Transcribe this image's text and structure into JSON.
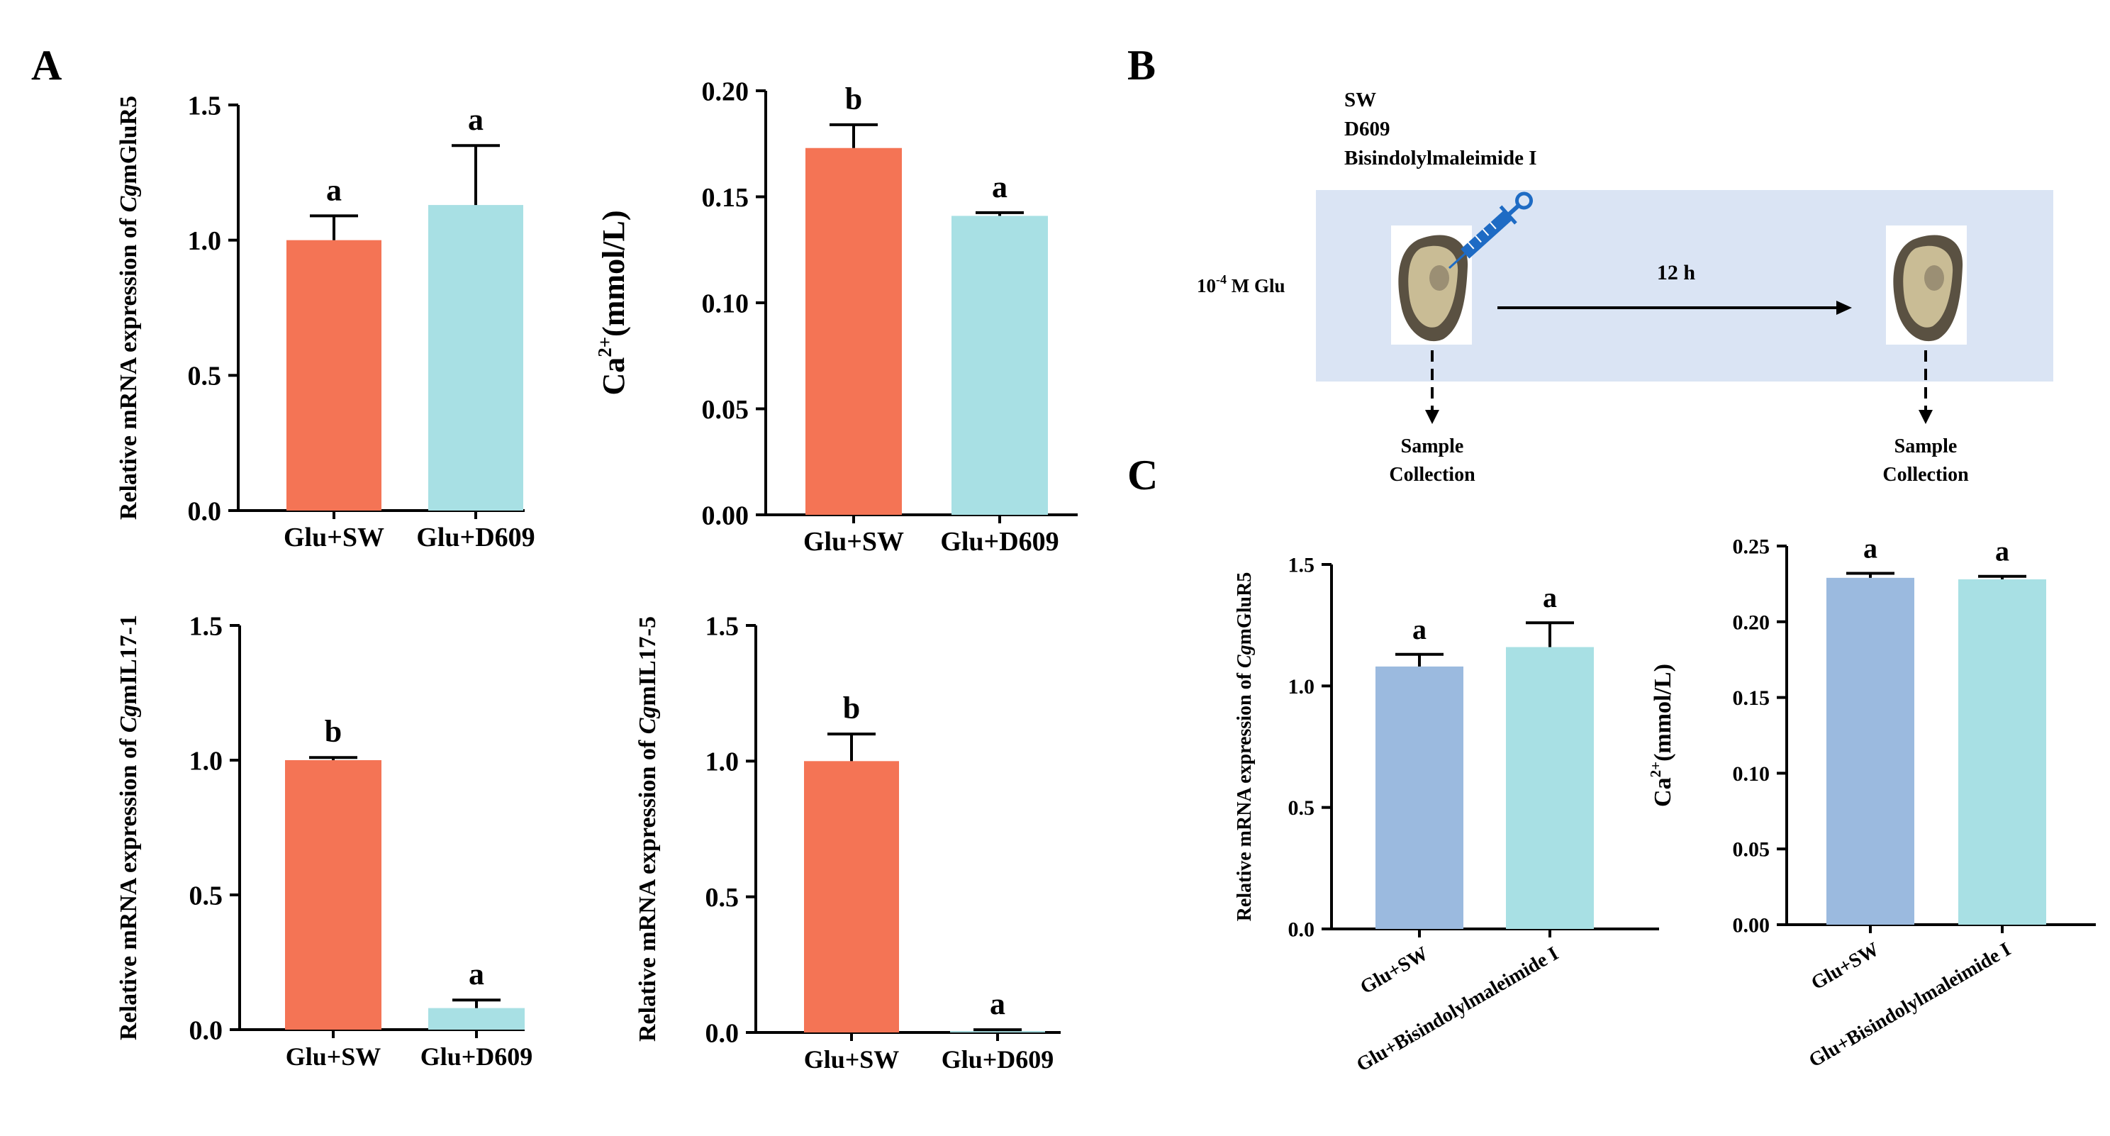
{
  "panel_labels": {
    "A": "A",
    "B": "B",
    "C": "C"
  },
  "colors": {
    "orange": "#F47455",
    "cyan": "#A8E0E4",
    "blue": "#9BBADF",
    "schematic_bg": "#DAE4F4",
    "syringe": "#1E6BC4"
  },
  "schematic": {
    "treatments": [
      "SW",
      "D609",
      "Bisindolylmaleimide I"
    ],
    "glu_prefix": "10",
    "glu_exponent": "-4",
    "glu_suffix": " M Glu",
    "time_label": "12 h",
    "sample_label_line1": "Sample",
    "sample_label_line2": "Collection"
  },
  "chart_data": [
    {
      "id": "A1",
      "type": "bar",
      "panel": "A",
      "categories": [
        "Glu+SW",
        "Glu+D609"
      ],
      "values": [
        1.0,
        1.13
      ],
      "errors": [
        0.09,
        0.22
      ],
      "letters": [
        "a",
        "a"
      ],
      "colors": [
        "#F47455",
        "#A8E0E4"
      ],
      "ylabel_pre": "Relative mRNA expression of ",
      "ylabel_ital": "Cg",
      "ylabel_post": "mGluR5",
      "ylim": [
        0,
        1.5
      ],
      "yticks": [
        "0.0",
        "0.5",
        "1.0",
        "1.5"
      ]
    },
    {
      "id": "A2",
      "type": "bar",
      "panel": "A",
      "categories": [
        "Glu+SW",
        "Glu+D609"
      ],
      "values": [
        0.173,
        0.141
      ],
      "errors": [
        0.011,
        0.0015
      ],
      "letters": [
        "b",
        "a"
      ],
      "colors": [
        "#F47455",
        "#A8E0E4"
      ],
      "ylabel_main": "Ca",
      "ylabel_sup": "2+",
      "ylabel_post": "(mmol/L)",
      "ylim": [
        0,
        0.2
      ],
      "yticks": [
        "0.00",
        "0.05",
        "0.10",
        "0.15",
        "0.20"
      ]
    },
    {
      "id": "A3",
      "type": "bar",
      "panel": "A",
      "categories": [
        "Glu+SW",
        "Glu+D609"
      ],
      "values": [
        1.0,
        0.08
      ],
      "errors": [
        0.01,
        0.03
      ],
      "letters": [
        "b",
        "a"
      ],
      "colors": [
        "#F47455",
        "#A8E0E4"
      ],
      "ylabel_pre": "Relative mRNA expression of ",
      "ylabel_ital": "Cg",
      "ylabel_post": "mIL17-1",
      "ylim": [
        0,
        1.5
      ],
      "yticks": [
        "0.0",
        "0.5",
        "1.0",
        "1.5"
      ]
    },
    {
      "id": "A4",
      "type": "bar",
      "panel": "A",
      "categories": [
        "Glu+SW",
        "Glu+D609"
      ],
      "values": [
        1.0,
        0.005
      ],
      "errors": [
        0.1,
        0.005
      ],
      "letters": [
        "b",
        "a"
      ],
      "colors": [
        "#F47455",
        "#A8E0E4"
      ],
      "ylabel_pre": "Relative mRNA expression of ",
      "ylabel_ital": "Cg",
      "ylabel_post": "mIL17-5",
      "ylim": [
        0,
        1.5
      ],
      "yticks": [
        "0.0",
        "0.5",
        "1.0",
        "1.5"
      ]
    },
    {
      "id": "C1",
      "type": "bar",
      "panel": "C",
      "categories": [
        "Glu+SW",
        "Glu+Bisindolylmaleimide I"
      ],
      "values": [
        1.08,
        1.16
      ],
      "errors": [
        0.05,
        0.1
      ],
      "letters": [
        "a",
        "a"
      ],
      "colors": [
        "#9BBADF",
        "#A8E0E4"
      ],
      "ylabel_pre": "Relative mRNA expression of ",
      "ylabel_ital": "Cg",
      "ylabel_post": "mGluR5",
      "ylim": [
        0,
        1.5
      ],
      "yticks": [
        "0.0",
        "0.5",
        "1.0",
        "1.5"
      ]
    },
    {
      "id": "C2",
      "type": "bar",
      "panel": "C",
      "categories": [
        "Glu+SW",
        "Glu+Bisindolylmaleimide I"
      ],
      "values": [
        0.229,
        0.228
      ],
      "errors": [
        0.003,
        0.002
      ],
      "letters": [
        "a",
        "a"
      ],
      "colors": [
        "#9BBADF",
        "#A8E0E4"
      ],
      "ylabel_main": "Ca",
      "ylabel_sup": "2+",
      "ylabel_post": "(mmol/L)",
      "ylim": [
        0,
        0.25
      ],
      "yticks": [
        "0.00",
        "0.05",
        "0.10",
        "0.15",
        "0.20",
        "0.25"
      ]
    }
  ]
}
